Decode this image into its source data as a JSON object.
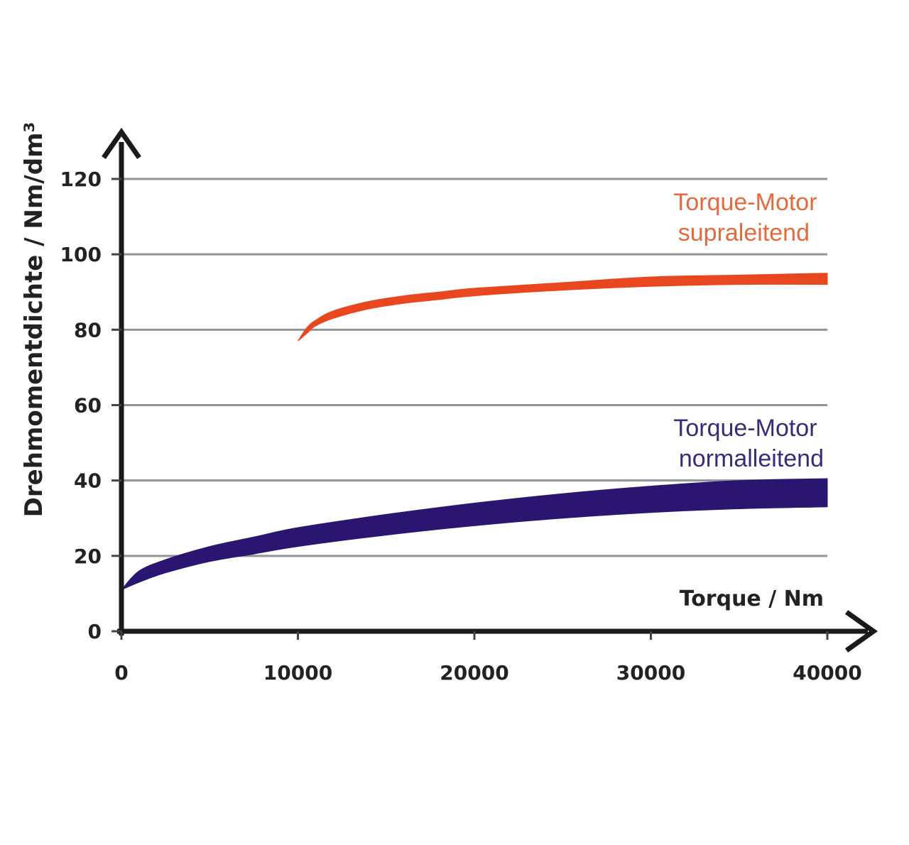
{
  "chart_data": {
    "type": "area",
    "title": "",
    "xlabel": "Torque / Nm",
    "ylabel": "Drehmomentdichte / Nm/dm³",
    "xlim": [
      0,
      40000
    ],
    "ylim": [
      0,
      120
    ],
    "x_ticks": [
      "0",
      "10000",
      "20000",
      "30000",
      "40000"
    ],
    "y_ticks": [
      "0",
      "20",
      "40",
      "60",
      "80",
      "100",
      "120"
    ],
    "grid": "horizontal",
    "series": [
      {
        "name": "Torque-Motor supraleitend",
        "label_lines": [
          "Torque-Motor",
          "supraleitend"
        ],
        "color": "#e8461e",
        "label_color": "#e26a3f",
        "x": [
          10000,
          10500,
          11000,
          12000,
          14000,
          16000,
          18000,
          20000,
          25000,
          30000,
          35000,
          40000
        ],
        "lower": [
          77,
          79,
          81,
          83,
          85.5,
          87,
          88,
          89,
          90.5,
          91.5,
          92,
          92
        ],
        "upper": [
          77,
          80.5,
          82.5,
          85,
          87.5,
          89,
          90,
          91,
          92.5,
          94,
          94.5,
          95
        ]
      },
      {
        "name": "Torque-Motor normalleitend",
        "label_lines": [
          "Torque-Motor",
          "normalleitend"
        ],
        "color": "#2a1670",
        "label_color": "#3a2b78",
        "x": [
          0,
          1000,
          2500,
          5000,
          7500,
          10000,
          15000,
          20000,
          25000,
          30000,
          35000,
          40000
        ],
        "lower": [
          11,
          13,
          15.5,
          18.5,
          20.5,
          22.5,
          25.5,
          28,
          30,
          31.5,
          32.5,
          33
        ],
        "upper": [
          11,
          16,
          19,
          22.5,
          25,
          27.5,
          31,
          34,
          36.5,
          38.5,
          40,
          40.5
        ]
      }
    ]
  }
}
